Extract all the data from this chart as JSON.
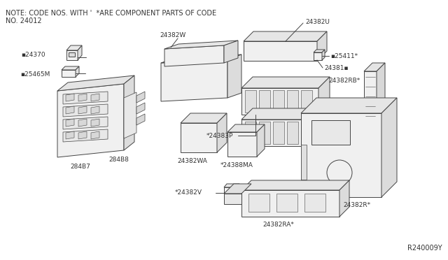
{
  "bg_color": "#ffffff",
  "note_line1": "NOTE: CODE NOS. WITH '  *ARE COMPONENT PARTS OF CODE",
  "note_line2": "NO. 24012",
  "diagram_id": "R240009Y",
  "lc": "#444444",
  "tc": "#333333",
  "note_fs": 7.0,
  "label_fs": 6.5
}
